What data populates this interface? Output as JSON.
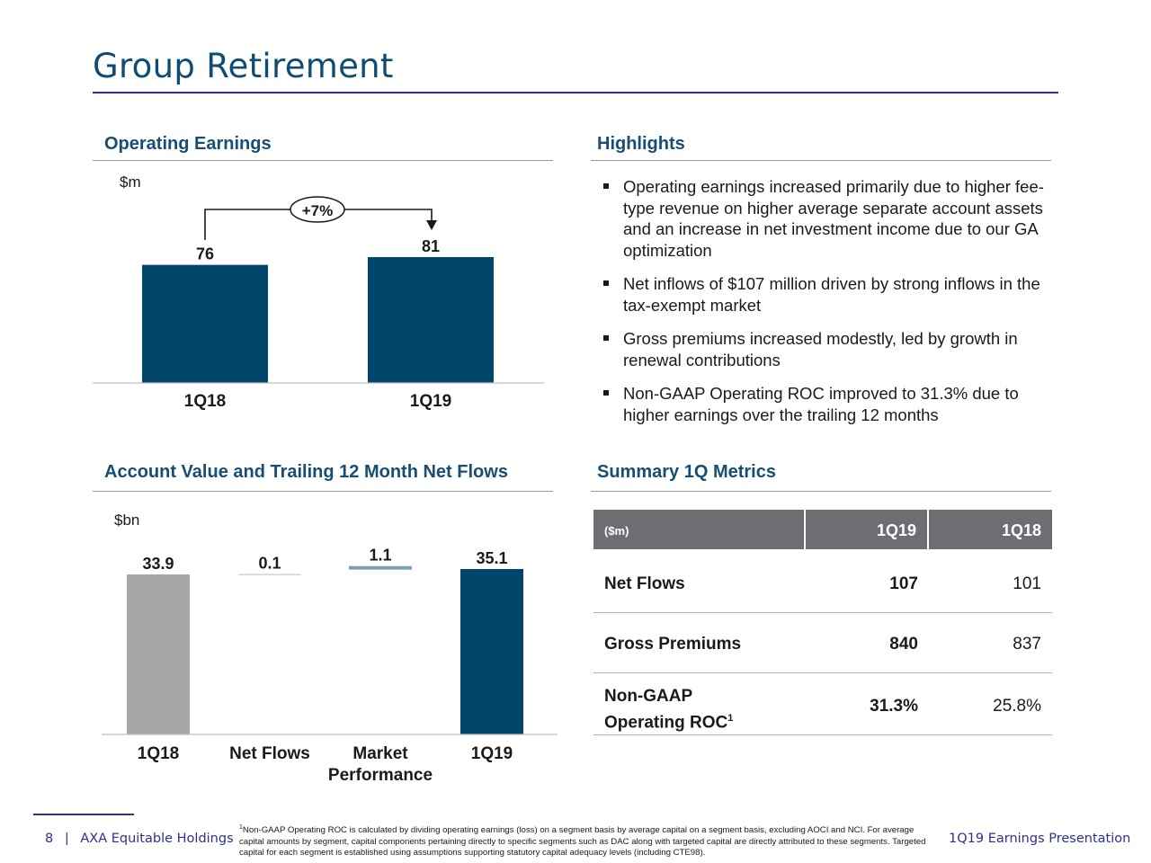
{
  "page": {
    "title": "Group Retirement",
    "page_number": "8",
    "separator": "|",
    "company": "AXA Equitable Holdings",
    "presentation": "1Q19 Earnings Presentation"
  },
  "operating_earnings": {
    "heading": "Operating Earnings",
    "unit": "$m",
    "change_label": "+7%"
  },
  "highlights": {
    "heading": "Highlights",
    "bullets": [
      "Operating earnings increased primarily due to higher fee-type revenue on higher average separate account assets and an increase in net investment income due to our GA optimization",
      "Net inflows of $107 million driven by strong inflows in the tax-exempt market",
      "Gross premiums increased modestly, led by growth in renewal contributions",
      "Non-GAAP Operating ROC improved to 31.3% due to higher earnings over the trailing 12 months"
    ]
  },
  "account_value": {
    "heading": "Account Value and Trailing 12 Month Net Flows",
    "unit": "$bn"
  },
  "summary": {
    "heading": "Summary 1Q Metrics",
    "columns": [
      "($m)",
      "1Q19",
      "1Q18"
    ],
    "rows": [
      {
        "label": "Net Flows",
        "q19": "107",
        "q18": "101"
      },
      {
        "label": "Gross Premiums",
        "q19": "840",
        "q18": "837"
      },
      {
        "label_line1": "Non-GAAP",
        "label_line2": "Operating ROC",
        "sup": "1",
        "q19": "31.3%",
        "q18": "25.8%"
      }
    ]
  },
  "footnote": {
    "marker": "1",
    "text": "Non-GAAP Operating ROC is calculated by dividing operating earnings (loss) on a segment basis by average capital on a segment basis, excluding AOCI and NCI. For average capital amounts by segment, capital components pertaining directly to specific segments such as DAC along with targeted capital are directly attributed to these segments. Targeted capital for each segment is established using assumptions supporting statutory capital adequacy levels (including CTE98)."
  },
  "chart_data": [
    {
      "type": "bar",
      "title": "Operating Earnings",
      "ylabel": "$m",
      "categories": [
        "1Q18",
        "1Q19"
      ],
      "values": [
        76,
        81
      ],
      "labels": [
        "76",
        "81"
      ],
      "colors": [
        "#00476b",
        "#00476b"
      ],
      "annotation": "+7%",
      "ylim": [
        0,
        100
      ],
      "grid": false,
      "legend": "none"
    },
    {
      "type": "bar",
      "subtype": "waterfall",
      "title": "Account Value and Trailing 12 Month Net Flows",
      "ylabel": "$bn",
      "categories": [
        "1Q18",
        "Net Flows",
        "Market Performance"
      ],
      "categories_last": "1Q19",
      "values": [
        33.9,
        0.1,
        1.1,
        35.1
      ],
      "labels": [
        "33.9",
        "0.1",
        "1.1",
        "35.1"
      ],
      "colors": [
        "#a6a6a6",
        "#c5d6e6",
        "#7f9fb4",
        "#00476b"
      ],
      "grid": false,
      "legend": "none"
    }
  ]
}
